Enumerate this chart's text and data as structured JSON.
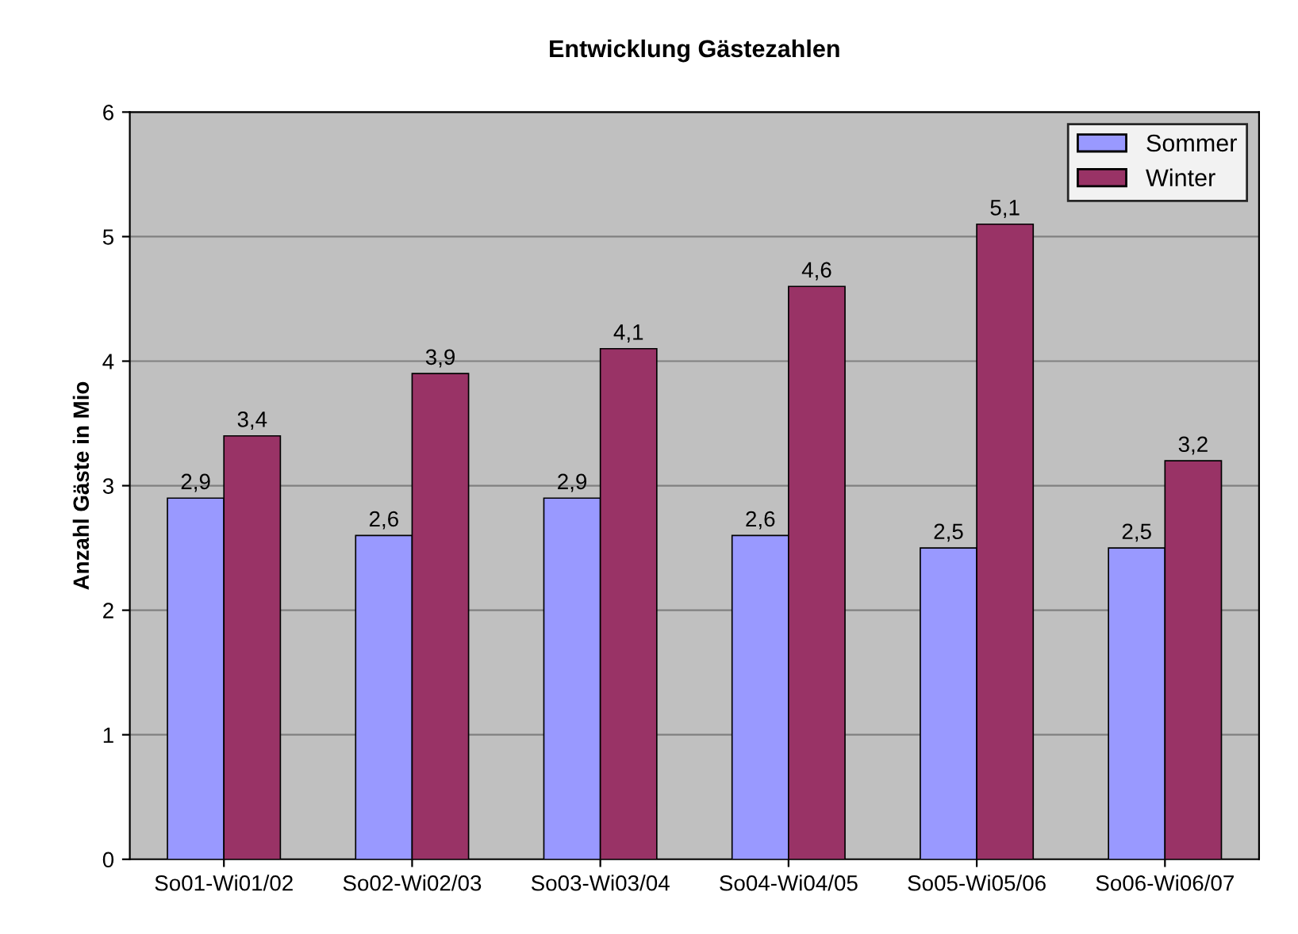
{
  "chart_data": {
    "type": "bar",
    "title": "Entwicklung Gästezahlen",
    "ylabel": "Anzahl Gäste in Mio",
    "categories": [
      "So01-Wi01/02",
      "So02-Wi02/03",
      "So03-Wi03/04",
      "So04-Wi04/05",
      "So05-Wi05/06",
      "So06-Wi06/07"
    ],
    "series": [
      {
        "name": "Sommer",
        "color": "#9999ff",
        "values": [
          2.9,
          2.6,
          2.9,
          2.6,
          2.5,
          2.5
        ],
        "value_labels": [
          "2,9",
          "2,6",
          "2,9",
          "2,6",
          "2,5",
          "2,5"
        ]
      },
      {
        "name": "Winter",
        "color": "#993366",
        "values": [
          3.4,
          3.9,
          4.1,
          4.6,
          5.1,
          3.2
        ],
        "value_labels": [
          "3,4",
          "3,9",
          "4,1",
          "4,6",
          "5,1",
          "3,2"
        ]
      }
    ],
    "ylim": [
      0,
      6
    ],
    "yticks": [
      0,
      1,
      2,
      3,
      4,
      5,
      6
    ],
    "grid": "y",
    "legend": "top right"
  }
}
